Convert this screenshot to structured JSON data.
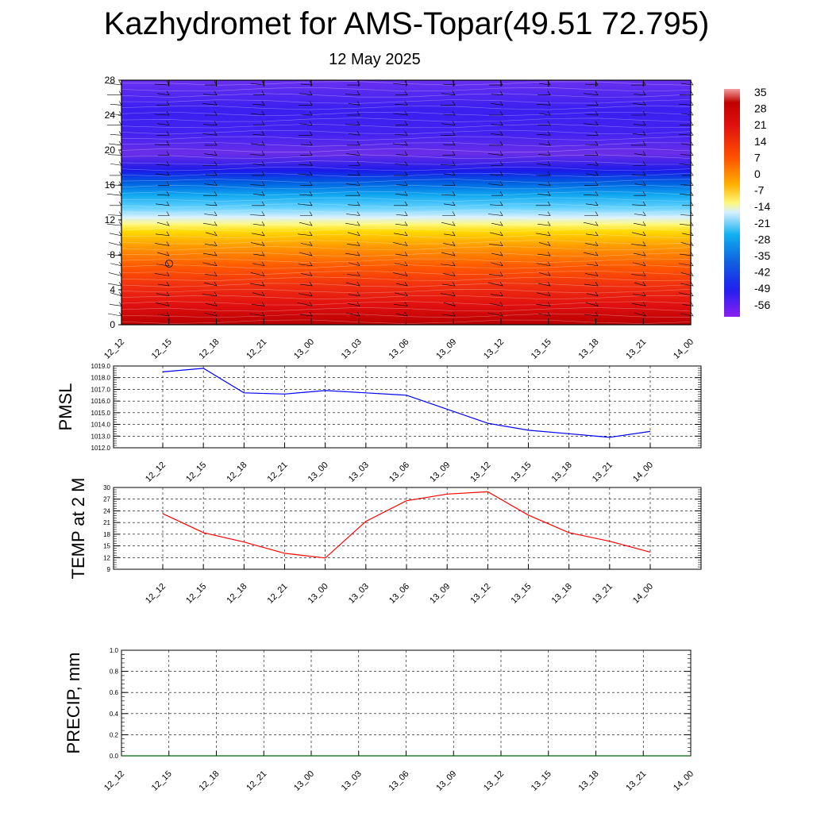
{
  "header": {
    "title": "Kazhydromet for AMS-Topar(49.51 72.795)",
    "date": "12 May 2025"
  },
  "chart_data": [
    {
      "type": "heatmap",
      "name": "upper-air-cross-section",
      "title": "",
      "ylim": [
        0,
        28
      ],
      "y_ticks": [
        "0",
        "4",
        "8",
        "12",
        "16",
        "20",
        "24",
        "28"
      ],
      "x_ticks": [
        "12_12",
        "12_15",
        "12_18",
        "12_21",
        "13_00",
        "13_03",
        "13_06",
        "13_09",
        "13_12",
        "13_15",
        "13_18",
        "13_21",
        "14_00"
      ],
      "colorbar_labels": [
        "35",
        "28",
        "21",
        "14",
        "7",
        "0",
        "-7",
        "-14",
        "-21",
        "-28",
        "-35",
        "-42",
        "-49",
        "-56"
      ],
      "levels_temperature": [
        {
          "level": 0,
          "temp": 30
        },
        {
          "level": 4,
          "temp": 26
        },
        {
          "level": 8,
          "temp": 16
        },
        {
          "level": 11,
          "temp": 5
        },
        {
          "level": 12.5,
          "temp": -10
        },
        {
          "level": 14,
          "temp": -25
        },
        {
          "level": 16,
          "temp": -38
        },
        {
          "level": 18,
          "temp": -52
        },
        {
          "level": 20,
          "temp": -58
        },
        {
          "level": 24,
          "temp": -60
        },
        {
          "level": 28,
          "temp": -58
        }
      ],
      "wind_barbs": true,
      "grid": false
    },
    {
      "type": "line",
      "name": "pmsl",
      "ylabel": "PMSL",
      "ylim": [
        1012.0,
        1019.0
      ],
      "y_ticks": [
        "1012.0",
        "1013.0",
        "1014.0",
        "1015.0",
        "1016.0",
        "1017.0",
        "1018.0",
        "1019.0"
      ],
      "categories": [
        "12_12",
        "12_15",
        "12_18",
        "12_21",
        "13_00",
        "13_03",
        "13_06",
        "13_09",
        "13_12",
        "13_15",
        "13_18",
        "13_21",
        "14_00"
      ],
      "series": [
        {
          "color": "#0000ff",
          "values": [
            1018.5,
            1018.8,
            1016.7,
            1016.6,
            1016.9,
            1016.7,
            1016.5,
            1015.3,
            1014.1,
            1013.5,
            1013.2,
            1012.9,
            1013.4
          ]
        }
      ],
      "grid": true
    },
    {
      "type": "line",
      "name": "temp-2m",
      "ylabel": "TEMP at 2 M",
      "ylim": [
        9,
        30
      ],
      "y_ticks": [
        "9",
        "12",
        "15",
        "18",
        "21",
        "24",
        "27",
        "30"
      ],
      "categories": [
        "12_12",
        "12_15",
        "12_18",
        "12_21",
        "13_00",
        "13_03",
        "13_06",
        "13_09",
        "13_12",
        "13_15",
        "13_18",
        "13_21",
        "14_00"
      ],
      "series": [
        {
          "color": "#ff0000",
          "values": [
            23.3,
            18.4,
            16.0,
            13.1,
            11.9,
            21.3,
            26.6,
            28.3,
            28.9,
            22.9,
            18.4,
            16.2,
            13.4
          ]
        }
      ],
      "grid": true
    },
    {
      "type": "line",
      "name": "precip",
      "ylabel": "PRECIP, mm",
      "ylim": [
        0.0,
        1.0
      ],
      "y_ticks": [
        "0.0",
        "0.2",
        "0.4",
        "0.6",
        "0.8",
        "1.0"
      ],
      "categories": [
        "12_12",
        "12_15",
        "12_18",
        "12_21",
        "13_00",
        "13_03",
        "13_06",
        "13_09",
        "13_12",
        "13_15",
        "13_18",
        "13_21",
        "14_00"
      ],
      "series": [
        {
          "color": "#006400",
          "values": [
            0,
            0,
            0,
            0,
            0,
            0,
            0,
            0,
            0,
            0,
            0,
            0,
            0
          ]
        }
      ],
      "grid": true
    }
  ]
}
